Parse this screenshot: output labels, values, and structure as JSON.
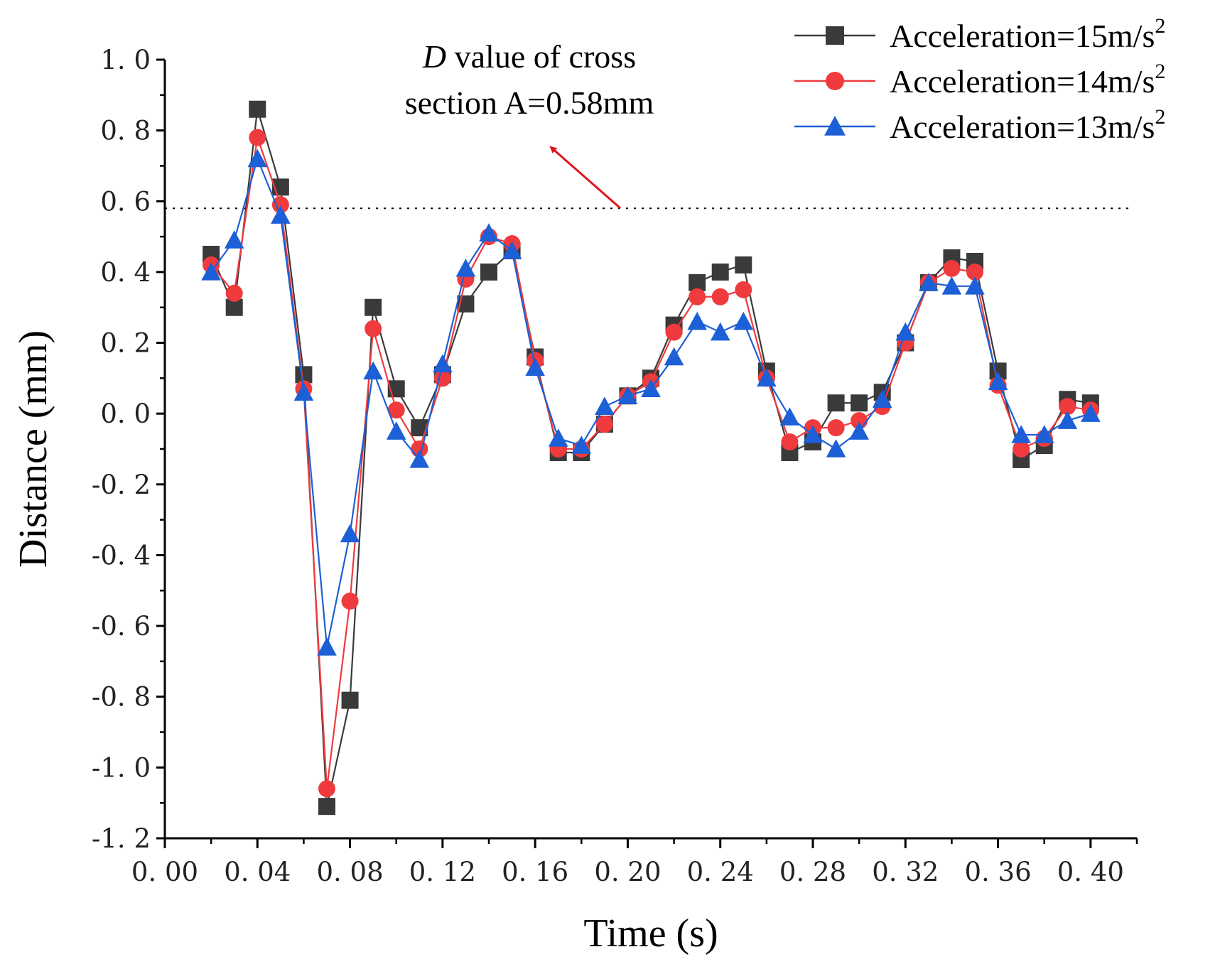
{
  "chart_data": {
    "type": "line",
    "xlabel": "Time (s)",
    "ylabel": "Distance (mm)",
    "xlim": [
      0.0,
      0.42
    ],
    "ylim": [
      -1.2,
      1.0
    ],
    "x_ticks": [
      "0.00",
      "0.04",
      "0.08",
      "0.12",
      "0.16",
      "0.20",
      "0.24",
      "0.28",
      "0.32",
      "0.36",
      "0.40"
    ],
    "y_ticks": [
      "1.0",
      "0.8",
      "0.6",
      "0.4",
      "0.2",
      "0.0",
      "-0.2",
      "-0.4",
      "-0.6",
      "-0.8",
      "-1.0",
      "-1.2"
    ],
    "grid": false,
    "legend_position": "top-right",
    "x": [
      0.02,
      0.03,
      0.04,
      0.05,
      0.06,
      0.07,
      0.08,
      0.09,
      0.1,
      0.11,
      0.12,
      0.13,
      0.14,
      0.15,
      0.16,
      0.17,
      0.18,
      0.19,
      0.2,
      0.21,
      0.22,
      0.23,
      0.24,
      0.25,
      0.26,
      0.27,
      0.28,
      0.29,
      0.3,
      0.31,
      0.32,
      0.33,
      0.34,
      0.35,
      0.36,
      0.37,
      0.38,
      0.39,
      0.4
    ],
    "series": [
      {
        "name_text": "Acceleration=15m/s",
        "name_sup": "2",
        "color": "#3a3a3a",
        "marker": "square",
        "values": [
          0.45,
          0.3,
          0.86,
          0.64,
          0.11,
          -1.11,
          -0.81,
          0.3,
          0.07,
          -0.04,
          0.11,
          0.31,
          0.4,
          0.46,
          0.16,
          -0.11,
          -0.11,
          -0.03,
          0.05,
          0.1,
          0.25,
          0.37,
          0.4,
          0.42,
          0.12,
          -0.11,
          -0.08,
          0.03,
          0.03,
          0.06,
          0.2,
          0.37,
          0.44,
          0.43,
          0.12,
          -0.13,
          -0.09,
          0.04,
          0.03
        ]
      },
      {
        "name_text": "Acceleration=14m/s",
        "name_sup": "2",
        "color": "#ef3a3e",
        "marker": "circle",
        "values": [
          0.42,
          0.34,
          0.78,
          0.59,
          0.07,
          -1.06,
          -0.53,
          0.24,
          0.01,
          -0.1,
          0.1,
          0.38,
          0.5,
          0.48,
          0.15,
          -0.1,
          -0.1,
          -0.03,
          0.05,
          0.09,
          0.23,
          0.33,
          0.33,
          0.35,
          0.1,
          -0.08,
          -0.04,
          -0.04,
          -0.02,
          0.02,
          0.2,
          0.37,
          0.41,
          0.4,
          0.08,
          -0.1,
          -0.07,
          0.02,
          0.01
        ]
      },
      {
        "name_text": "Acceleration=13m/s",
        "name_sup": "2",
        "color": "#1c5fd6",
        "marker": "triangle",
        "values": [
          0.4,
          0.49,
          0.72,
          0.56,
          0.06,
          -0.66,
          -0.34,
          0.12,
          -0.05,
          -0.13,
          0.14,
          0.41,
          0.51,
          0.46,
          0.13,
          -0.07,
          -0.09,
          0.02,
          0.05,
          0.07,
          0.16,
          0.26,
          0.23,
          0.26,
          0.1,
          -0.01,
          -0.06,
          -0.1,
          -0.05,
          0.04,
          0.23,
          0.37,
          0.36,
          0.36,
          0.09,
          -0.06,
          -0.06,
          -0.02,
          0.0
        ]
      }
    ],
    "reference_line": {
      "y": 0.58,
      "style": "dotted"
    },
    "annotation": {
      "line1_italic": "D",
      "line1_rest": " value of cross",
      "line2": "section A=0.58mm",
      "arrow_color": "#e0141b"
    }
  }
}
